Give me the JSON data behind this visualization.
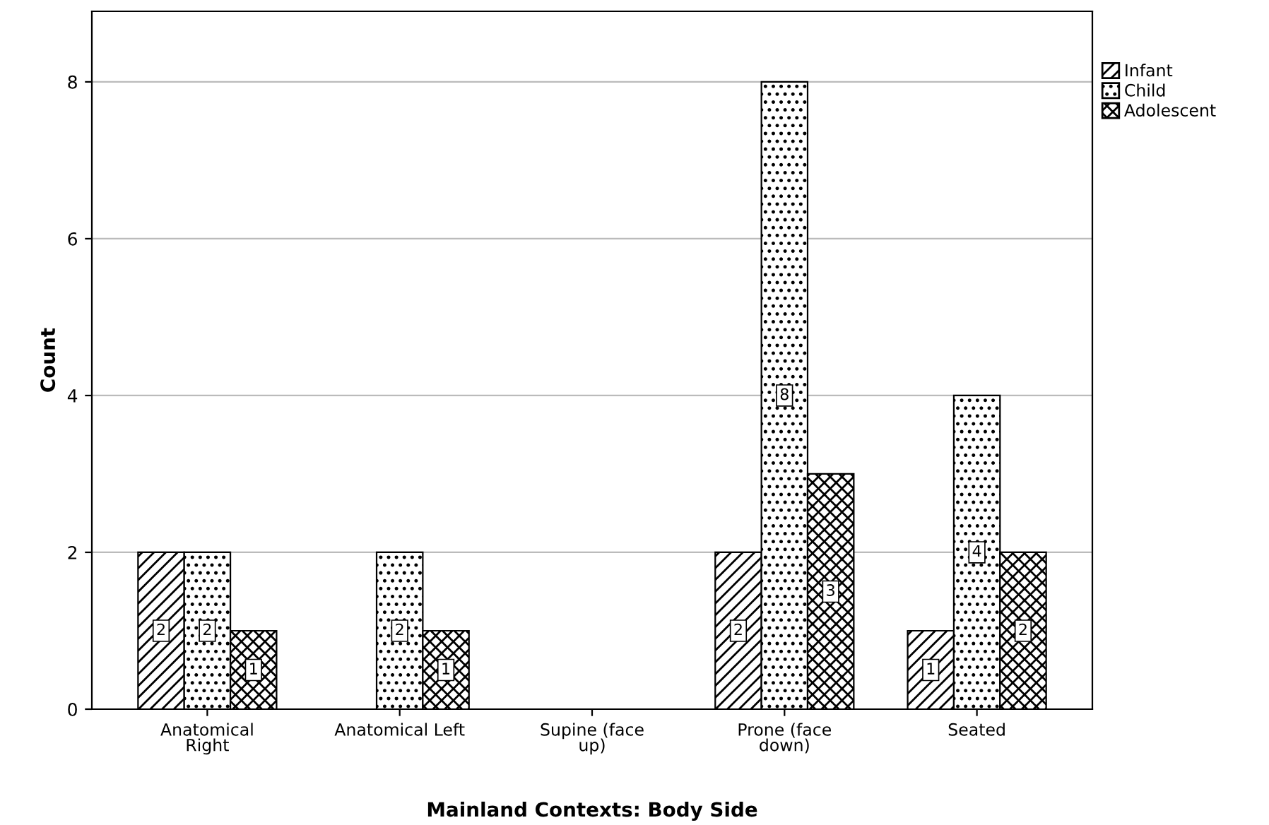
{
  "chart_data": {
    "type": "bar",
    "xlabel": "Mainland Contexts: Body Side",
    "ylabel": "Count",
    "categories": [
      "Anatomical\nRight",
      "Anatomical Left",
      "Supine (face\nup)",
      "Prone (face\ndown)",
      "Seated"
    ],
    "series": [
      {
        "name": "Infant",
        "color": "#000000",
        "values": [
          2,
          null,
          null,
          2,
          1
        ]
      },
      {
        "name": "Child",
        "color": "#000000",
        "values": [
          2,
          2,
          null,
          8,
          4
        ]
      },
      {
        "name": "Adolescent",
        "color": "#000000",
        "values": [
          1,
          1,
          null,
          3,
          2
        ]
      }
    ],
    "ylim": [
      0,
      8.9
    ],
    "yticks": [
      0,
      2,
      4,
      6,
      8
    ],
    "grid": "y",
    "legend": "right",
    "data_labels": true
  }
}
